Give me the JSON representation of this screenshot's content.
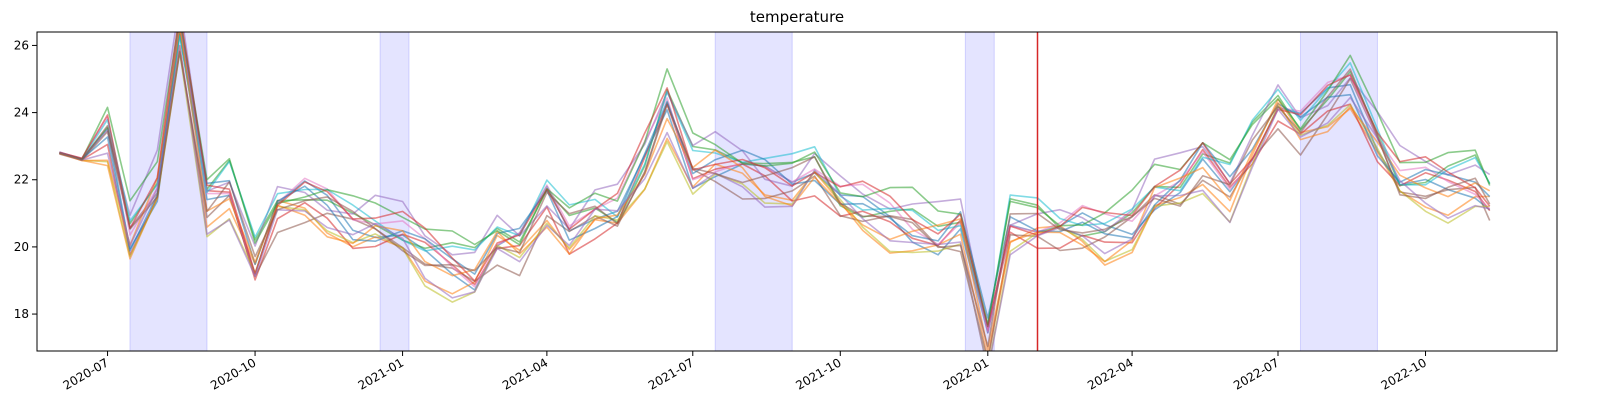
{
  "chart_data": {
    "type": "line",
    "title": "temperature",
    "xlabel": "",
    "ylabel": "",
    "xlim": [
      "2020-05-18",
      "2022-12-22"
    ],
    "ylim": [
      16.9,
      26.4
    ],
    "grid": false,
    "legend": "none",
    "x_ticks": [
      "2020-07",
      "2020-10",
      "2021-01",
      "2021-04",
      "2021-07",
      "2021-10",
      "2022-01",
      "2022-04",
      "2022-07",
      "2022-10"
    ],
    "y_ticks": [
      18,
      20,
      22,
      24,
      26
    ],
    "shaded_spans": [
      {
        "start": "2020-07-15",
        "end": "2020-09-01"
      },
      {
        "start": "2020-12-18",
        "end": "2021-01-05"
      },
      {
        "start": "2021-07-15",
        "end": "2021-09-01"
      },
      {
        "start": "2021-12-18",
        "end": "2022-01-05"
      },
      {
        "start": "2022-07-15",
        "end": "2022-09-01"
      }
    ],
    "shade_color": "#c9c9ff",
    "vline": {
      "date": "2022-02-01",
      "color": "#d62728"
    },
    "series_colors": [
      "#1f77b4",
      "#ff7f0e",
      "#2ca02c",
      "#d62728",
      "#9467bd",
      "#8c564b",
      "#e377c2",
      "#bcbd22",
      "#17becf",
      "#1f77b4",
      "#ff7f0e",
      "#2ca02c",
      "#d62728",
      "#9467bd",
      "#8c564b"
    ],
    "x": [
      "2020-06-01",
      "2020-06-15",
      "2020-07-01",
      "2020-07-15",
      "2020-08-01",
      "2020-08-15",
      "2020-09-01",
      "2020-09-15",
      "2020-10-01",
      "2020-10-15",
      "2020-11-01",
      "2020-11-15",
      "2020-12-01",
      "2020-12-15",
      "2021-01-01",
      "2021-01-15",
      "2021-02-01",
      "2021-02-15",
      "2021-03-01",
      "2021-03-15",
      "2021-04-01",
      "2021-04-15",
      "2021-05-01",
      "2021-05-15",
      "2021-06-01",
      "2021-06-15",
      "2021-07-01",
      "2021-07-15",
      "2021-08-01",
      "2021-08-15",
      "2021-09-01",
      "2021-09-15",
      "2021-10-01",
      "2021-10-15",
      "2021-11-01",
      "2021-11-15",
      "2021-12-01",
      "2021-12-15",
      "2022-01-01",
      "2022-01-15",
      "2022-02-01",
      "2022-02-15",
      "2022-03-01",
      "2022-03-15",
      "2022-04-01",
      "2022-04-15",
      "2022-05-01",
      "2022-05-15",
      "2022-06-01",
      "2022-06-15",
      "2022-07-01",
      "2022-07-15",
      "2022-08-01",
      "2022-08-15",
      "2022-09-01",
      "2022-09-15",
      "2022-10-01",
      "2022-10-15",
      "2022-11-01",
      "2022-11-10"
    ],
    "base": [
      22.8,
      22.6,
      23.3,
      20.3,
      21.8,
      26.4,
      21.3,
      21.7,
      19.5,
      21.2,
      21.4,
      21.1,
      20.6,
      20.6,
      20.4,
      19.8,
      19.4,
      19.2,
      20.2,
      20.0,
      21.3,
      20.4,
      21.0,
      21.0,
      22.5,
      24.2,
      22.3,
      22.5,
      22.3,
      22.0,
      21.8,
      22.3,
      21.4,
      21.1,
      20.8,
      20.6,
      20.3,
      20.6,
      17.2,
      20.6,
      20.6,
      20.5,
      20.5,
      20.3,
      20.6,
      21.6,
      21.8,
      22.5,
      21.7,
      22.9,
      24.2,
      23.5,
      24.2,
      24.8,
      23.2,
      22.0,
      21.9,
      21.8,
      21.9,
      21.4
    ],
    "deviations": [
      0.0,
      -0.4,
      0.3,
      -0.2,
      0.5,
      -0.3,
      0.2,
      -0.5,
      0.4,
      0.1,
      -0.2,
      0.6,
      0.3,
      -0.4,
      0.0
    ]
  }
}
